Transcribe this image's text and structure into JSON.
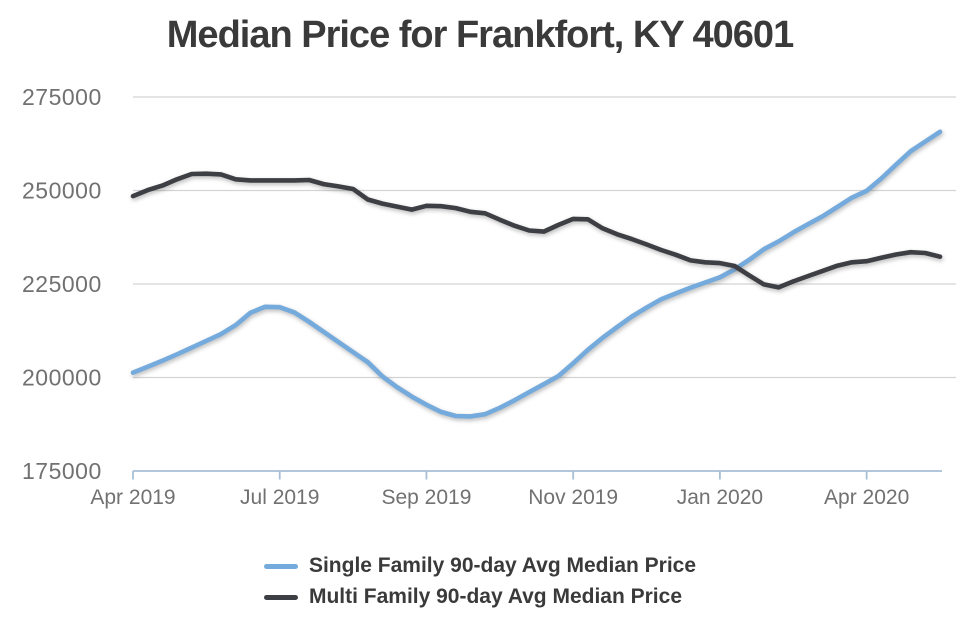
{
  "title": "Median Price for Frankfort, KY 40601",
  "colors": {
    "single_family": "#74aadc",
    "multi_family": "#3e3f44",
    "grid": "#d4d4d4",
    "axis": "#a7bfd6",
    "tick_label": "#717171",
    "text": "#3a3a3a",
    "background": "#ffffff"
  },
  "legend": {
    "items": [
      {
        "label": "Single Family 90-day Avg Median Price",
        "color": "#74aadc"
      },
      {
        "label": "Multi Family 90-day Avg Median Price",
        "color": "#3e3f44"
      }
    ]
  },
  "chart_data": {
    "type": "line",
    "title": "Median Price for Frankfort, KY 40601",
    "xlabel": "",
    "ylabel": "",
    "grid": true,
    "legend_position": "bottom",
    "ylim": [
      175000,
      275000
    ],
    "y_ticks": [
      175000,
      200000,
      225000,
      250000,
      275000
    ],
    "x_tick_labels": [
      "Apr 2019",
      "Jul 2019",
      "Sep 2019",
      "Nov 2019",
      "Jan 2020",
      "Apr 2020"
    ],
    "x_tick_indices": [
      0,
      10,
      20,
      30,
      40,
      50
    ],
    "series": [
      {
        "name": "Single Family 90-day Avg Median Price",
        "color": "#74aadc",
        "values": [
          201300,
          202900,
          204500,
          206200,
          208000,
          209800,
          211600,
          214000,
          217300,
          218900,
          218800,
          217400,
          214900,
          212200,
          209500,
          206800,
          204100,
          200300,
          197400,
          194900,
          192700,
          190800,
          189700,
          189600,
          190200,
          191900,
          193900,
          196100,
          198200,
          200400,
          203800,
          207400,
          210600,
          213500,
          216300,
          218700,
          220900,
          222500,
          224000,
          225400,
          226800,
          228900,
          231500,
          234300,
          236400,
          238800,
          241000,
          243100,
          245600,
          248100,
          249900,
          253200,
          256900,
          260500,
          263100,
          265700
        ]
      },
      {
        "name": "Multi Family 90-day Avg Median Price",
        "color": "#3e3f44",
        "values": [
          248500,
          250100,
          251300,
          253000,
          254400,
          254500,
          254300,
          253000,
          252700,
          252700,
          252700,
          252700,
          252800,
          251700,
          251100,
          250400,
          247600,
          246500,
          245700,
          244900,
          245900,
          245800,
          245300,
          244300,
          243900,
          242200,
          240600,
          239300,
          239000,
          240800,
          242400,
          242300,
          239900,
          238300,
          237000,
          235600,
          234100,
          232800,
          231300,
          230800,
          230600,
          229800,
          227300,
          224900,
          224100,
          225700,
          227100,
          228500,
          229900,
          230800,
          231100,
          232000,
          232900,
          233500,
          233300,
          232300
        ]
      }
    ]
  }
}
